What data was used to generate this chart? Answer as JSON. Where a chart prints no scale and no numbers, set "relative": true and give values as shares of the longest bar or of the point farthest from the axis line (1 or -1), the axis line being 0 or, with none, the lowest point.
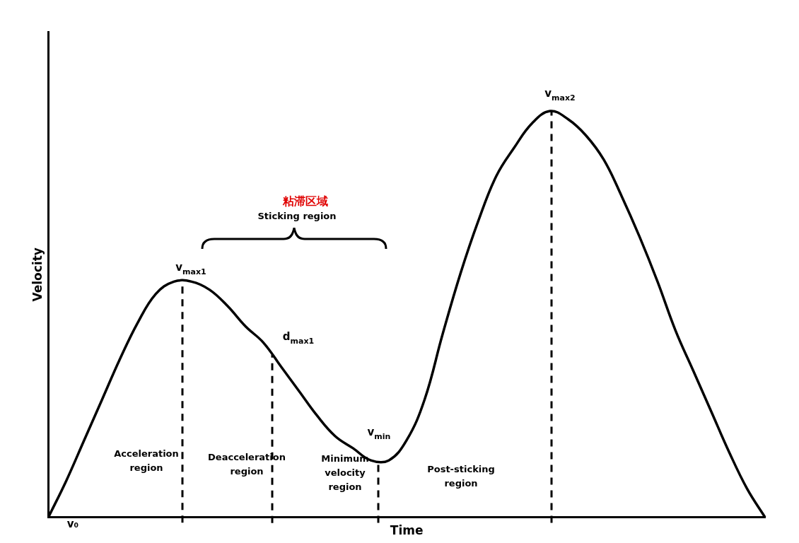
{
  "chart_data": {
    "type": "line",
    "xlabel": "Time",
    "ylabel": "Velocity",
    "relative": true,
    "categories": [
      null,
      null,
      null,
      null,
      null,
      null,
      null,
      null,
      null,
      null,
      null,
      null,
      null,
      null,
      null,
      null,
      null,
      null,
      null,
      null,
      null,
      null,
      null,
      null,
      null,
      null,
      null,
      null,
      null,
      null,
      null,
      null,
      null,
      null,
      null,
      null,
      null,
      null,
      null,
      null,
      null
    ],
    "series": [
      {
        "color": "#000000",
        "values": [
          0,
          0.09,
          0.19,
          0.29,
          0.39,
          0.48,
          0.55,
          0.58,
          0.58,
          0.56,
          0.52,
          0.47,
          0.43,
          0.37,
          0.31,
          0.25,
          0.2,
          0.17,
          0.14,
          0.14,
          0.19,
          0.29,
          0.45,
          0.6,
          0.73,
          0.84,
          0.91,
          0.97,
          1,
          0.98,
          0.94,
          0.88,
          0.79,
          0.69,
          0.58,
          0.46,
          0.36,
          0.26,
          0.16,
          0.07,
          0
        ]
      }
    ],
    "annotations": [
      "粘滞区域",
      "Sticking region",
      "Acceleration region",
      "Deacceleration region",
      "Minimum velocity region",
      "Post-sticking region",
      "v₀",
      "v$_{max1}$",
      "d$_{max1}$",
      "v$_{min}$",
      "v$_{max2}$"
    ]
  }
}
